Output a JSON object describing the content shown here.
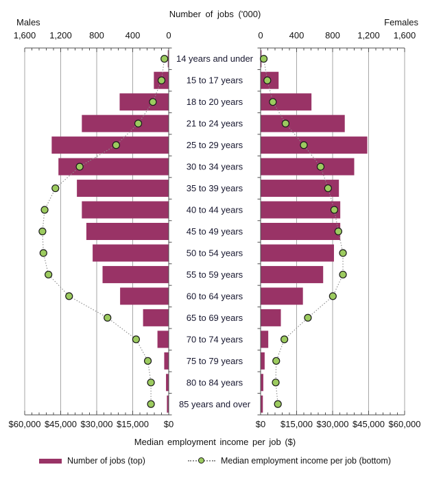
{
  "chart": {
    "top_axis_title": "Number of jobs ('000)",
    "left_group_label": "Males",
    "right_group_label": "Females",
    "bottom_axis_title": "Median employment income per job ($)",
    "legend": {
      "bar_label": "Number of jobs (top)",
      "dot_label": "Median employment income per job (bottom)"
    }
  },
  "chart_data": {
    "type": "bar",
    "variant": "population-pyramid with income dot overlay, males left / females right",
    "categories": [
      "14 years and under",
      "15 to 17 years",
      "18 to 20 years",
      "21 to 24 years",
      "25 to 29 years",
      "30 to 34 years",
      "35 to 39 years",
      "40 to 44 years",
      "45 to 49 years",
      "50 to 54 years",
      "55 to 59 years",
      "60 to 64 years",
      "65 to 69 years",
      "70 to 74 years",
      "75 to 79 years",
      "80 to 84 years",
      "85 years and over"
    ],
    "series": [
      {
        "name": "Males - number of jobs ('000)",
        "side": "male",
        "kind": "bar",
        "values": [
          10,
          165,
          545,
          965,
          1300,
          1225,
          1020,
          965,
          915,
          845,
          735,
          540,
          285,
          125,
          50,
          30,
          20
        ]
      },
      {
        "name": "Females - number of jobs ('000)",
        "side": "female",
        "kind": "bar",
        "values": [
          10,
          200,
          565,
          935,
          1185,
          1040,
          870,
          885,
          885,
          815,
          695,
          470,
          225,
          85,
          45,
          30,
          25
        ]
      },
      {
        "name": "Males - median employment income per job ($)",
        "side": "male",
        "kind": "dot",
        "values": [
          1800,
          3000,
          6600,
          12700,
          21900,
          37100,
          47200,
          51700,
          52600,
          52200,
          50100,
          41500,
          25500,
          13600,
          8700,
          7400,
          7400
        ]
      },
      {
        "name": "Females - median employment income per job ($)",
        "side": "female",
        "kind": "dot",
        "values": [
          1300,
          2800,
          5100,
          10400,
          18000,
          25000,
          28100,
          30700,
          32400,
          34300,
          34300,
          30100,
          19700,
          9900,
          6500,
          6300,
          7200
        ]
      }
    ],
    "jobs_axis": {
      "label": "Number of jobs ('000)",
      "range": [
        0,
        1600
      ],
      "ticks": [
        "0",
        "400",
        "800",
        "1,200",
        "1,600"
      ],
      "minor_per_major": 5,
      "position": "top"
    },
    "income_axis": {
      "label": "Median employment income per job ($)",
      "range": [
        0,
        60000
      ],
      "ticks": [
        "$0",
        "$15,000",
        "$30,000",
        "$45,000",
        "$60,000"
      ],
      "minor_per_major": 5,
      "position": "bottom"
    },
    "grid": true,
    "legend_position": "bottom",
    "colors": {
      "bar": "#993366",
      "dot_fill": "#9CCB5F",
      "dot_stroke": "#1a1a1a",
      "grid": "#a6a6a6",
      "axis": "#4d4d4d",
      "connector": "#8f8f8f",
      "text": "#111111",
      "category_text": "#16162e"
    }
  }
}
